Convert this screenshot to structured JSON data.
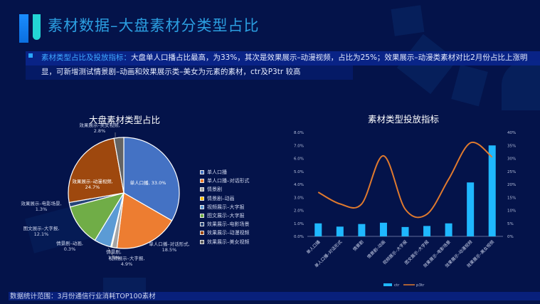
{
  "header": {
    "title": "素材数据–大盘素材分类型占比"
  },
  "summary": {
    "highlight": "素材类型占比及投放指标：",
    "text": "大盘单人口播占比最高，为33%，其次是效果展示–动漫视频，占比为25%；效果展示–动漫类素材对比2月份占比上涨明显，可新增测试情景剧–动画和效果展示类–美女为元素的素材，ctr及P3tr 较高"
  },
  "footer": {
    "text": "数据统计范围：3月份通信行业消耗TOP100素材"
  },
  "colors": {
    "background": "#04134a",
    "accent": "#2b9ee0",
    "bar": "#1fb8ff",
    "line": "#e07a2e"
  },
  "chart_data": [
    {
      "type": "pie",
      "title": "大盘素材类型占比",
      "legend_position": "right",
      "slices": [
        {
          "label": "单人口播",
          "value": 33.0,
          "display": "单人口播, 33.0%",
          "color": "#4472c4"
        },
        {
          "label": "单人口播–对话形式",
          "value": 18.5,
          "display": "单人口播–对话形式, 18.5%",
          "color": "#ed7d31"
        },
        {
          "label": "情景剧",
          "value": 1.5,
          "display": "情景剧, 1.5%",
          "color": "#a5a5a5"
        },
        {
          "label": "情景剧–动画",
          "value": 0.3,
          "display": "情景剧–动画, 0.3%",
          "color": "#ffc000"
        },
        {
          "label": "视频展示–大字报",
          "value": 4.9,
          "display": "视频展示–大字报, 4.9%",
          "color": "#5b9bd5"
        },
        {
          "label": "图文展示–大字报",
          "value": 12.1,
          "display": "图文展示–大字报, 12.1%",
          "color": "#70ad47"
        },
        {
          "label": "效果展示–电影场景",
          "value": 1.3,
          "display": "效果展示–电影场景, 1.3%",
          "color": "#264478"
        },
        {
          "label": "效果展示–动漫视频",
          "value": 24.7,
          "display": "效果展示–动漫视频, 24.7%",
          "color": "#9e480e"
        },
        {
          "label": "效果展示–美女视频",
          "value": 2.8,
          "display": "效果展示–美女视频, 2.8%",
          "color": "#636363"
        }
      ]
    },
    {
      "type": "bar+line",
      "title": "素材类型投放指标",
      "categories": [
        "单人口播",
        "单人口播–对话形式",
        "情景剧",
        "情景剧–动画",
        "视频展示–大字报",
        "图文展示–大字报",
        "效果展示–电影场景",
        "效果展示–动漫视频",
        "效果展示–美女视频"
      ],
      "series": [
        {
          "name": "ctr",
          "type": "bar",
          "axis": "left",
          "values": [
            1.0,
            0.75,
            0.95,
            1.05,
            0.72,
            0.8,
            1.0,
            4.15,
            7.0
          ]
        },
        {
          "name": "p3tr",
          "type": "line",
          "axis": "right",
          "values": [
            17,
            12.5,
            12.5,
            31,
            10.5,
            8.5,
            22,
            36,
            30.5
          ]
        }
      ],
      "left_axis": {
        "ticks": [
          "0.0%",
          "1.0%",
          "2.0%",
          "3.0%",
          "4.0%",
          "5.0%",
          "6.0%",
          "7.0%",
          "8.0%"
        ],
        "ylim": [
          0,
          8
        ]
      },
      "right_axis": {
        "ticks": [
          "0%",
          "5%",
          "10%",
          "15%",
          "20%",
          "25%",
          "30%",
          "35%",
          "40%"
        ],
        "ylim": [
          0,
          40
        ]
      },
      "legend": [
        "ctr",
        "p3tr"
      ],
      "legend_position": "bottom",
      "grid": false
    }
  ]
}
